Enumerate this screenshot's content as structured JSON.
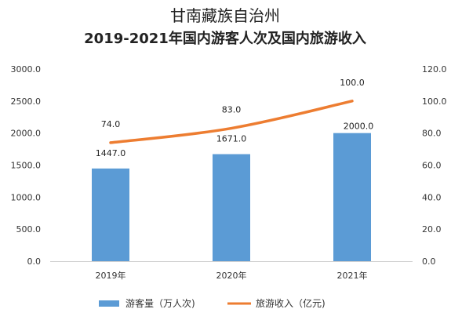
{
  "chart_data": {
    "type": "bar",
    "title": "甘南藏族自治州",
    "subtitle": "2019-2021年国内游客人次及国内旅游收入",
    "categories": [
      "2019年",
      "2020年",
      "2021年"
    ],
    "series": [
      {
        "name": "游客量（万人次)",
        "type": "bar",
        "axis": "left",
        "values": [
          1447.0,
          1671.0,
          2000.0
        ],
        "labels": [
          "1447.0",
          "1671.0",
          "2000.0"
        ],
        "color": "#5b9bd5"
      },
      {
        "name": "旅游收入（亿元)",
        "type": "line",
        "axis": "right",
        "values": [
          74.0,
          83.0,
          100.0
        ],
        "labels": [
          "74.0",
          "83.0",
          "100.0"
        ],
        "color": "#ed7d31"
      }
    ],
    "y_left": {
      "lim": [
        0,
        3000
      ],
      "ticks": [
        "0.0",
        "500.0",
        "1000.0",
        "1500.0",
        "2000.0",
        "2500.0",
        "3000.0"
      ]
    },
    "y_right": {
      "lim": [
        0,
        120
      ],
      "ticks": [
        "0.0",
        "20.0",
        "40.0",
        "60.0",
        "80.0",
        "100.0",
        "120.0"
      ]
    },
    "grid": false,
    "legend_position": "bottom"
  }
}
